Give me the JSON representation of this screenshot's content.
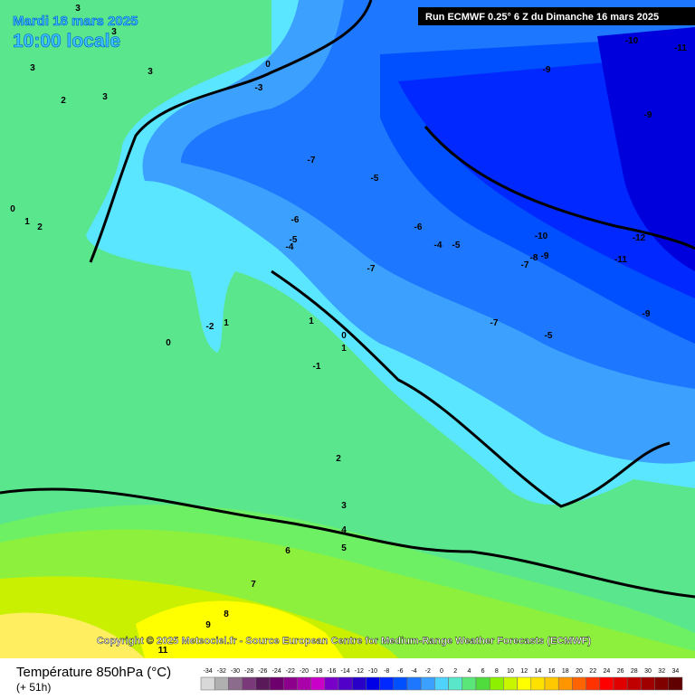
{
  "header": {
    "date": "Mardi 18 mars 2025",
    "time": "10:00 locale",
    "run": "Run ECMWF 0.25° 6 Z du Dimanche 16 mars 2025"
  },
  "copyright": "Copyright © 2025 Meteociel.fr - Source European Centre for Medium-Range Weather Forecasts (ECMWF)",
  "footer": {
    "title": "Température 850hPa (°C)",
    "lead": "(+ 51h)"
  },
  "scale": {
    "values": [
      -34,
      -32,
      -30,
      -28,
      -26,
      -24,
      -22,
      -20,
      -18,
      -16,
      -14,
      -12,
      -10,
      -8,
      -6,
      -4,
      -2,
      0,
      2,
      4,
      6,
      8,
      10,
      12,
      14,
      16,
      18,
      20,
      22,
      24,
      26,
      28,
      30,
      32,
      34
    ],
    "colors": [
      "#d8d8d8",
      "#b0b0b0",
      "#8c6c8c",
      "#7a3a7a",
      "#5a1a5a",
      "#6e006e",
      "#8c008c",
      "#aa00aa",
      "#c800c8",
      "#7800c8",
      "#5000c8",
      "#2800c8",
      "#0000e6",
      "#0028ff",
      "#0050ff",
      "#1e78ff",
      "#3ca0ff",
      "#50d2ff",
      "#5ae6c8",
      "#5ae678",
      "#50dc3c",
      "#8cf000",
      "#c8f500",
      "#ffff00",
      "#ffe100",
      "#ffc800",
      "#ff9600",
      "#ff6400",
      "#ff3200",
      "#ff0000",
      "#e00000",
      "#c00000",
      "#a00000",
      "#800000",
      "#600000"
    ]
  },
  "contour_labels": [
    3,
    3,
    3,
    3,
    2,
    3,
    0,
    -3,
    -7,
    -5,
    -6,
    -5,
    -4,
    -6,
    -4,
    -5,
    -7,
    -10,
    -9,
    -8,
    -7,
    -12,
    -11,
    -9,
    -10,
    -11,
    -9,
    -9,
    -7,
    -5,
    0,
    1,
    2,
    1,
    -2,
    -1,
    0,
    1,
    0,
    1,
    2,
    3,
    4,
    5,
    6,
    7,
    8,
    9,
    11
  ]
}
